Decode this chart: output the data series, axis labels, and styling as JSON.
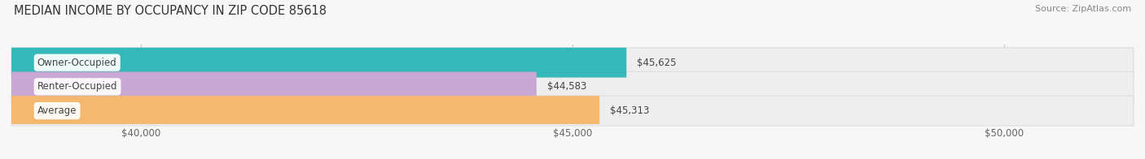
{
  "title": "MEDIAN INCOME BY OCCUPANCY IN ZIP CODE 85618",
  "source": "Source: ZipAtlas.com",
  "categories": [
    "Owner-Occupied",
    "Renter-Occupied",
    "Average"
  ],
  "values": [
    45625,
    44583,
    45313
  ],
  "labels": [
    "$45,625",
    "$44,583",
    "$45,313"
  ],
  "bar_colors": [
    "#35b8b8",
    "#c9a8d4",
    "#f5b870"
  ],
  "bar_bg_color": "#eeeeee",
  "bar_border_color": "#dddddd",
  "xlim_min": 38500,
  "xlim_max": 51500,
  "xticks": [
    40000,
    45000,
    50000
  ],
  "xtick_labels": [
    "$40,000",
    "$45,000",
    "$50,000"
  ],
  "title_fontsize": 10.5,
  "source_fontsize": 8,
  "label_fontsize": 8.5,
  "bar_label_fontsize": 8.5,
  "figsize": [
    14.06,
    1.96
  ],
  "dpi": 100,
  "bg_color": "#f7f7f7"
}
